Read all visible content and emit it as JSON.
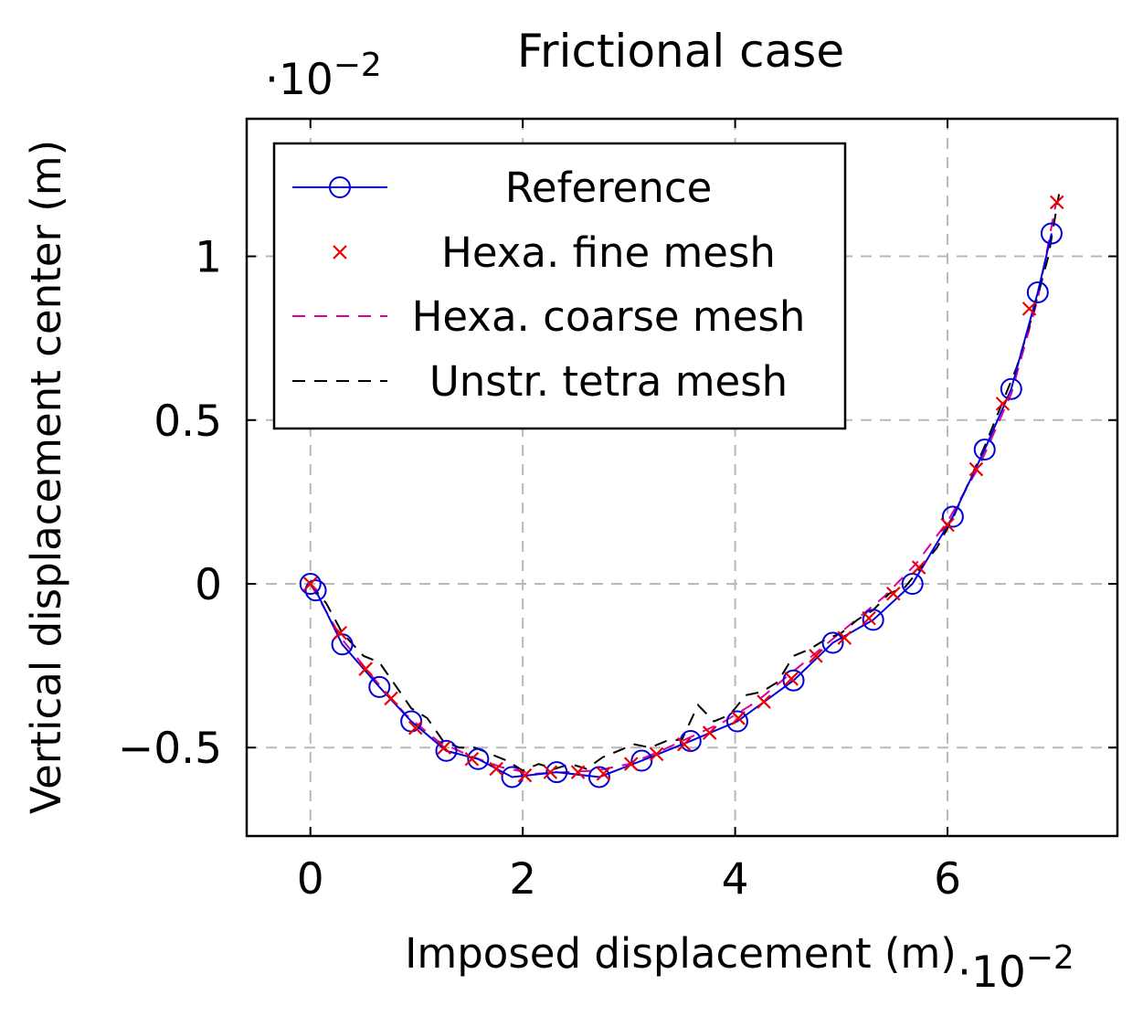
{
  "chart_data": {
    "type": "line",
    "title": "Frictional case",
    "xlabel": "Imposed displacement (m)",
    "ylabel": "Vertical displacement center (m)",
    "x_scale_label": "·10",
    "x_scale_exp": "−2",
    "y_scale_label": "·10",
    "y_scale_exp": "−2",
    "xlim": [
      -0.6,
      7.6
    ],
    "ylim": [
      -0.77,
      1.42
    ],
    "x_ticks": [
      0,
      2,
      4,
      6
    ],
    "x_tick_labels": [
      "0",
      "2",
      "4",
      "6"
    ],
    "y_ticks": [
      -0.5,
      0,
      0.5,
      1
    ],
    "y_tick_labels": [
      "−0.5",
      "0",
      "0.5",
      "1"
    ],
    "grid": true,
    "legend_position": "top-left",
    "series": [
      {
        "name": "Reference",
        "color": "#0000dd",
        "style": "solid-circle",
        "x": [
          0,
          0.05,
          0.3,
          0.65,
          0.95,
          1.28,
          1.58,
          1.9,
          2.32,
          2.72,
          3.12,
          3.58,
          4.02,
          4.55,
          4.92,
          5.3,
          5.67,
          6.05,
          6.35,
          6.6,
          6.85,
          6.98
        ],
        "y": [
          0,
          -0.02,
          -0.185,
          -0.315,
          -0.42,
          -0.51,
          -0.535,
          -0.59,
          -0.575,
          -0.59,
          -0.54,
          -0.48,
          -0.42,
          -0.295,
          -0.18,
          -0.11,
          0,
          0.205,
          0.41,
          0.595,
          0.89,
          1.07
        ]
      },
      {
        "name": "Hexa. fine mesh",
        "color": "#ee0000",
        "style": "x-markers",
        "x": [
          0,
          0.28,
          0.52,
          0.76,
          0.99,
          1.26,
          1.52,
          1.75,
          2.02,
          2.26,
          2.52,
          2.76,
          3.02,
          3.26,
          3.52,
          3.76,
          4.03,
          4.27,
          4.53,
          4.76,
          5.03,
          5.26,
          5.49,
          5.73,
          6.0,
          6.27,
          6.52,
          6.77,
          7.03
        ],
        "y": [
          0,
          -0.15,
          -0.26,
          -0.35,
          -0.44,
          -0.5,
          -0.535,
          -0.565,
          -0.585,
          -0.575,
          -0.575,
          -0.58,
          -0.55,
          -0.52,
          -0.49,
          -0.455,
          -0.41,
          -0.36,
          -0.29,
          -0.22,
          -0.165,
          -0.105,
          -0.03,
          0.05,
          0.18,
          0.35,
          0.55,
          0.84,
          1.165
        ]
      },
      {
        "name": "Hexa. coarse mesh",
        "color": "#dd0099",
        "style": "dashed",
        "x": [
          0,
          0.3,
          0.6,
          0.9,
          1.2,
          1.5,
          1.8,
          2.1,
          2.4,
          2.7,
          3.0,
          3.3,
          3.6,
          3.9,
          4.2,
          4.5,
          4.8,
          5.1,
          5.4,
          5.7,
          6.0,
          6.3,
          6.6,
          6.85,
          7.02
        ],
        "y": [
          0,
          -0.17,
          -0.29,
          -0.4,
          -0.48,
          -0.525,
          -0.56,
          -0.58,
          -0.575,
          -0.57,
          -0.55,
          -0.51,
          -0.465,
          -0.42,
          -0.36,
          -0.28,
          -0.2,
          -0.12,
          -0.04,
          0.06,
          0.19,
          0.36,
          0.58,
          0.87,
          1.16
        ]
      },
      {
        "name": "Unstr. tetra mesh",
        "color": "#000000",
        "style": "dashed",
        "x": [
          0,
          0.15,
          0.3,
          0.5,
          0.65,
          0.8,
          0.95,
          1.1,
          1.25,
          1.4,
          1.55,
          1.7,
          1.85,
          2.0,
          2.15,
          2.3,
          2.45,
          2.6,
          2.75,
          2.9,
          3.05,
          3.2,
          3.35,
          3.5,
          3.65,
          3.8,
          3.95,
          4.1,
          4.25,
          4.4,
          4.55,
          4.7,
          4.85,
          5.0,
          5.15,
          5.3,
          5.45,
          5.6,
          5.75,
          5.9,
          6.05,
          6.2,
          6.35,
          6.5,
          6.65,
          6.8,
          6.95,
          7.05
        ],
        "y": [
          0,
          -0.06,
          -0.15,
          -0.22,
          -0.24,
          -0.31,
          -0.38,
          -0.41,
          -0.48,
          -0.5,
          -0.5,
          -0.52,
          -0.54,
          -0.57,
          -0.55,
          -0.565,
          -0.55,
          -0.565,
          -0.53,
          -0.51,
          -0.49,
          -0.5,
          -0.48,
          -0.475,
          -0.37,
          -0.42,
          -0.4,
          -0.34,
          -0.33,
          -0.3,
          -0.22,
          -0.2,
          -0.17,
          -0.15,
          -0.11,
          -0.08,
          -0.03,
          -0.01,
          0.05,
          0.11,
          0.2,
          0.31,
          0.42,
          0.54,
          0.66,
          0.82,
          1.0,
          1.19
        ]
      }
    ]
  }
}
